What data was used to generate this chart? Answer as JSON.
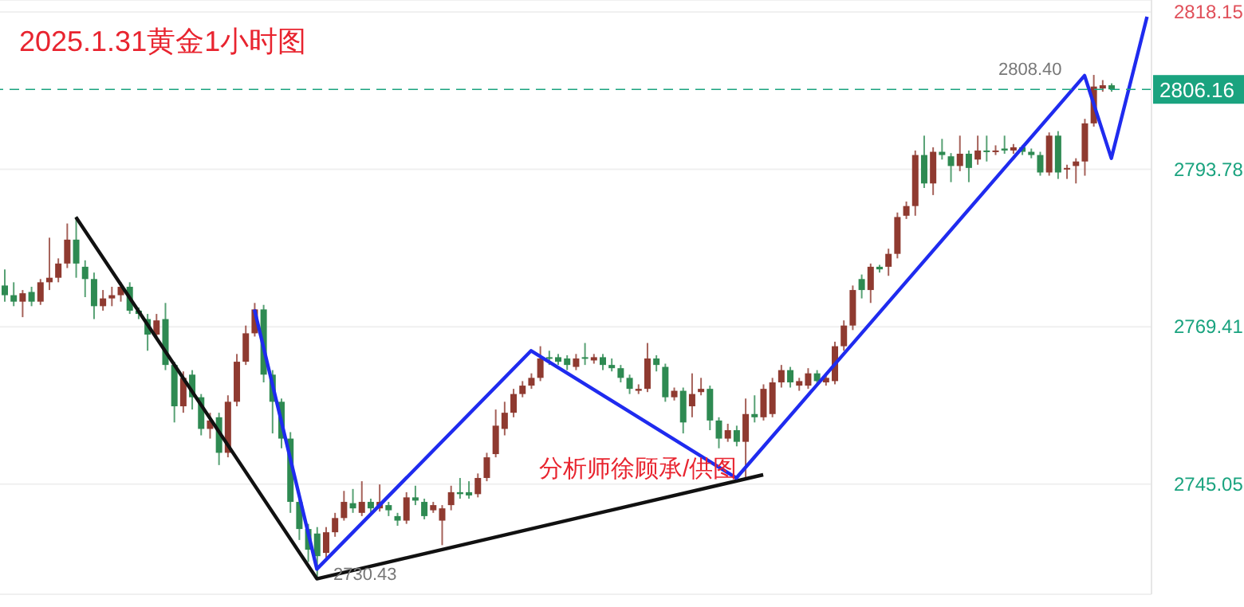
{
  "chart_data": {
    "type": "candlestick",
    "title": "2025.1.31黄金1小时图",
    "annotations": [
      "分析师徐顾承/供图",
      "2808.40",
      "2730.43"
    ],
    "categories": [
      null,
      null,
      null,
      null,
      null,
      null,
      null,
      null,
      null,
      null,
      null,
      null,
      null,
      null,
      null,
      null,
      null,
      null,
      null,
      null,
      null,
      null,
      null,
      null,
      null,
      null,
      null,
      null,
      null,
      null,
      null,
      null,
      null,
      null,
      null,
      null,
      null,
      null,
      null,
      null,
      null,
      null,
      null,
      null,
      null,
      null,
      null,
      null,
      null,
      null,
      null,
      null,
      null,
      null,
      null,
      null,
      null,
      null,
      null,
      null,
      null,
      null,
      null,
      null,
      null,
      null,
      null,
      null,
      null,
      null,
      null,
      null,
      null,
      null,
      null,
      null,
      null,
      null,
      null,
      null,
      null,
      null,
      null,
      null,
      null,
      null,
      null,
      null,
      null,
      null,
      null,
      null,
      null,
      null,
      null,
      null,
      null,
      null,
      null,
      null,
      null,
      null,
      null,
      null,
      null,
      null,
      null,
      null,
      null,
      null,
      null,
      null,
      null,
      null,
      null,
      null,
      null,
      null,
      null,
      null,
      null,
      null,
      null,
      null,
      null,
      null,
      null,
      null,
      null
    ],
    "ohlc": [
      [
        2775.8,
        2778.3,
        2773.3,
        2774.3
      ],
      [
        2774.3,
        2776.3,
        2772.6,
        2773.3
      ],
      [
        2773.3,
        2775.1,
        2770.9,
        2774.6
      ],
      [
        2774.8,
        2775.6,
        2772.6,
        2773.3
      ],
      [
        2773.3,
        2776.8,
        2772.8,
        2776.3
      ],
      [
        2776.3,
        2783.2,
        2775.1,
        2777.0
      ],
      [
        2777.0,
        2780.0,
        2776.3,
        2779.2
      ],
      [
        2779.2,
        2785.4,
        2778.5,
        2782.9
      ],
      [
        2782.9,
        2786.4,
        2777.0,
        2779.2
      ],
      [
        2778.7,
        2779.7,
        2774.0,
        2776.8
      ],
      [
        2776.8,
        2777.8,
        2770.6,
        2772.6
      ],
      [
        2772.6,
        2775.1,
        2771.9,
        2773.8
      ],
      [
        2773.8,
        2775.6,
        2772.6,
        2774.3
      ],
      [
        2774.3,
        2776.3,
        2773.3,
        2775.6
      ],
      [
        2775.6,
        2776.3,
        2771.4,
        2771.9
      ],
      [
        2771.9,
        2772.4,
        2770.6,
        2771.4
      ],
      [
        2770.6,
        2771.4,
        2765.7,
        2768.2
      ],
      [
        2768.2,
        2771.4,
        2767.4,
        2770.4
      ],
      [
        2770.6,
        2773.1,
        2762.7,
        2763.5
      ],
      [
        2763.5,
        2764.0,
        2754.6,
        2757.1
      ],
      [
        2757.1,
        2762.5,
        2756.1,
        2761.5
      ],
      [
        2762.0,
        2762.7,
        2756.6,
        2758.5
      ],
      [
        2758.5,
        2759.0,
        2752.6,
        2753.6
      ],
      [
        2753.6,
        2756.1,
        2752.1,
        2754.9
      ],
      [
        2755.4,
        2756.1,
        2748.0,
        2749.9
      ],
      [
        2749.9,
        2758.8,
        2749.2,
        2757.8
      ],
      [
        2757.8,
        2765.2,
        2757.1,
        2764.0
      ],
      [
        2764.0,
        2769.6,
        2763.5,
        2768.4
      ],
      [
        2768.4,
        2773.1,
        2767.9,
        2772.1
      ],
      [
        2772.1,
        2772.8,
        2760.8,
        2762.0
      ],
      [
        2762.0,
        2762.7,
        2752.9,
        2757.8
      ],
      [
        2757.8,
        2758.3,
        2750.6,
        2752.1
      ],
      [
        2752.1,
        2753.1,
        2740.6,
        2742.3
      ],
      [
        2742.3,
        2743.0,
        2736.4,
        2738.1
      ],
      [
        2738.1,
        2738.9,
        2733.0,
        2734.9
      ],
      [
        2737.4,
        2738.4,
        2730.43,
        2733.9
      ],
      [
        2734.4,
        2738.4,
        2733.6,
        2737.6
      ],
      [
        2737.6,
        2740.6,
        2736.9,
        2739.8
      ],
      [
        2739.8,
        2744.0,
        2739.4,
        2742.3
      ],
      [
        2742.1,
        2744.3,
        2740.6,
        2741.3
      ],
      [
        2740.6,
        2745.5,
        2740.1,
        2742.3
      ],
      [
        2742.3,
        2742.8,
        2740.6,
        2741.3
      ],
      [
        2741.3,
        2745.0,
        2740.8,
        2742.3
      ],
      [
        2741.8,
        2742.3,
        2740.1,
        2741.0
      ],
      [
        2740.1,
        2740.6,
        2738.6,
        2739.4
      ],
      [
        2739.4,
        2743.8,
        2738.9,
        2743.0
      ],
      [
        2743.0,
        2744.8,
        2741.8,
        2742.5
      ],
      [
        2742.3,
        2742.8,
        2739.6,
        2740.1
      ],
      [
        2741.0,
        2742.3,
        2740.6,
        2741.8
      ],
      [
        2739.4,
        2741.8,
        2735.6,
        2741.3
      ],
      [
        2741.8,
        2744.8,
        2741.0,
        2743.8
      ],
      [
        2743.8,
        2746.0,
        2742.8,
        2743.5
      ],
      [
        2743.8,
        2745.5,
        2742.8,
        2743.3
      ],
      [
        2743.5,
        2746.7,
        2743.0,
        2746.0
      ],
      [
        2746.0,
        2749.9,
        2745.5,
        2749.2
      ],
      [
        2749.7,
        2756.6,
        2749.2,
        2754.1
      ],
      [
        2753.6,
        2757.8,
        2752.6,
        2756.1
      ],
      [
        2756.1,
        2759.8,
        2755.4,
        2759.0
      ],
      [
        2759.0,
        2761.0,
        2758.5,
        2760.3
      ],
      [
        2760.3,
        2762.2,
        2759.8,
        2761.5
      ],
      [
        2761.5,
        2766.4,
        2761.0,
        2764.5
      ],
      [
        2764.7,
        2765.7,
        2763.5,
        2764.5
      ],
      [
        2764.7,
        2765.2,
        2763.5,
        2764.0
      ],
      [
        2764.5,
        2765.0,
        2762.7,
        2763.5
      ],
      [
        2763.2,
        2765.2,
        2762.7,
        2764.5
      ],
      [
        2764.7,
        2766.9,
        2763.5,
        2764.5
      ],
      [
        2764.2,
        2765.2,
        2763.7,
        2764.7
      ],
      [
        2764.7,
        2765.2,
        2762.7,
        2763.5
      ],
      [
        2763.5,
        2764.5,
        2762.5,
        2763.0
      ],
      [
        2763.0,
        2763.5,
        2760.8,
        2761.5
      ],
      [
        2761.5,
        2762.0,
        2759.0,
        2759.8
      ],
      [
        2759.5,
        2760.5,
        2759.0,
        2759.8
      ],
      [
        2759.8,
        2766.9,
        2759.3,
        2764.5
      ],
      [
        2764.5,
        2765.0,
        2762.5,
        2763.5
      ],
      [
        2763.2,
        2763.7,
        2757.8,
        2758.5
      ],
      [
        2758.5,
        2760.0,
        2758.0,
        2759.5
      ],
      [
        2759.5,
        2760.0,
        2752.9,
        2754.6
      ],
      [
        2757.1,
        2762.2,
        2755.4,
        2759.0
      ],
      [
        2759.3,
        2761.5,
        2758.8,
        2759.8
      ],
      [
        2759.8,
        2760.3,
        2753.4,
        2754.9
      ],
      [
        2754.9,
        2755.4,
        2750.6,
        2752.1
      ],
      [
        2752.1,
        2754.4,
        2751.6,
        2753.4
      ],
      [
        2753.4,
        2754.1,
        2750.9,
        2751.6
      ],
      [
        2751.6,
        2758.3,
        2746.0,
        2755.9
      ],
      [
        2755.9,
        2758.8,
        2754.6,
        2755.4
      ],
      [
        2755.4,
        2760.5,
        2754.9,
        2759.8
      ],
      [
        2755.9,
        2761.5,
        2755.4,
        2760.8
      ],
      [
        2760.8,
        2763.5,
        2760.0,
        2762.7
      ],
      [
        2762.7,
        2763.2,
        2760.0,
        2760.8
      ],
      [
        2760.3,
        2761.5,
        2759.5,
        2761.0
      ],
      [
        2760.3,
        2763.0,
        2759.8,
        2762.2
      ],
      [
        2762.2,
        2762.7,
        2760.3,
        2761.0
      ],
      [
        2760.8,
        2762.0,
        2760.3,
        2761.5
      ],
      [
        2761.0,
        2767.1,
        2760.5,
        2766.4
      ],
      [
        2766.4,
        2770.4,
        2765.7,
        2769.6
      ],
      [
        2769.6,
        2775.8,
        2768.9,
        2775.1
      ],
      [
        2776.8,
        2777.5,
        2773.8,
        2775.1
      ],
      [
        2775.1,
        2779.2,
        2773.1,
        2778.7
      ],
      [
        2778.7,
        2779.0,
        2777.8,
        2778.3
      ],
      [
        2778.7,
        2781.5,
        2777.3,
        2780.7
      ],
      [
        2780.7,
        2787.1,
        2780.0,
        2786.4
      ],
      [
        2786.6,
        2788.8,
        2786.1,
        2788.1
      ],
      [
        2788.1,
        2796.7,
        2786.6,
        2796.0
      ],
      [
        2796.0,
        2799.0,
        2790.9,
        2791.6
      ],
      [
        2791.6,
        2797.2,
        2789.8,
        2796.5
      ],
      [
        2796.5,
        2798.5,
        2795.3,
        2796.0
      ],
      [
        2795.8,
        2796.3,
        2791.8,
        2794.3
      ],
      [
        2794.3,
        2799.0,
        2793.5,
        2796.2
      ],
      [
        2796.2,
        2796.7,
        2791.8,
        2794.0
      ],
      [
        2795.3,
        2799.0,
        2794.5,
        2796.7
      ],
      [
        2796.7,
        2799.0,
        2795.0,
        2796.5
      ],
      [
        2796.5,
        2797.5,
        2796.0,
        2796.7
      ],
      [
        2797.0,
        2799.0,
        2796.2,
        2796.7
      ],
      [
        2796.7,
        2797.7,
        2796.2,
        2797.2
      ],
      [
        2797.2,
        2797.5,
        2796.0,
        2796.5
      ],
      [
        2796.5,
        2797.0,
        2795.5,
        2796.0
      ],
      [
        2796.0,
        2796.5,
        2792.8,
        2793.3
      ],
      [
        2793.3,
        2799.5,
        2792.8,
        2799.0
      ],
      [
        2799.0,
        2799.7,
        2792.3,
        2793.3
      ],
      [
        2793.8,
        2794.5,
        2792.3,
        2794.0
      ],
      [
        2794.3,
        2795.5,
        2791.6,
        2795.0
      ],
      [
        2795.0,
        2801.6,
        2792.8,
        2800.9
      ],
      [
        2800.9,
        2808.4,
        2800.4,
        2806.6
      ],
      [
        2806.3,
        2807.6,
        2805.8,
        2806.8
      ],
      [
        2806.8,
        2807.1,
        2805.8,
        2806.16
      ],
      null,
      null,
      null,
      null
    ],
    "colors": [
      "#2e8a52",
      "#2e8a52",
      "#8f3a30",
      "#2e8a52",
      "#8f3a30",
      "#8f3a30",
      "#8f3a30",
      "#8f3a30",
      "#2e8a52",
      "#2e8a52",
      "#2e8a52",
      "#8f3a30",
      "#8f3a30",
      "#8f3a30",
      "#2e8a52",
      "#2e8a52",
      "#2e8a52",
      "#8f3a30",
      "#2e8a52",
      "#2e8a52",
      "#8f3a30",
      "#2e8a52",
      "#2e8a52",
      "#8f3a30",
      "#2e8a52",
      "#8f3a30",
      "#8f3a30",
      "#8f3a30",
      "#8f3a30",
      "#2e8a52",
      "#2e8a52",
      "#2e8a52",
      "#2e8a52",
      "#2e8a52",
      "#2e8a52",
      "#2e8a52",
      "#8f3a30",
      "#8f3a30",
      "#8f3a30",
      "#2e8a52",
      "#8f3a30",
      "#2e8a52",
      "#8f3a30",
      "#2e8a52",
      "#2e8a52",
      "#8f3a30",
      "#2e8a52",
      "#2e8a52",
      "#8f3a30",
      "#8f3a30",
      "#8f3a30",
      "#2e8a52",
      "#2e8a52",
      "#8f3a30",
      "#8f3a30",
      "#8f3a30",
      "#8f3a30",
      "#8f3a30",
      "#8f3a30",
      "#8f3a30",
      "#8f3a30",
      "#2e8a52",
      "#2e8a52",
      "#2e8a52",
      "#8f3a30",
      "#2e8a52",
      "#8f3a30",
      "#2e8a52",
      "#2e8a52",
      "#2e8a52",
      "#2e8a52",
      "#8f3a30",
      "#8f3a30",
      "#2e8a52",
      "#2e8a52",
      "#8f3a30",
      "#2e8a52",
      "#8f3a30",
      "#8f3a30",
      "#2e8a52",
      "#2e8a52",
      "#8f3a30",
      "#2e8a52",
      "#8f3a30",
      "#2e8a52",
      "#8f3a30",
      "#8f3a30",
      "#8f3a30",
      "#2e8a52",
      "#8f3a30",
      "#8f3a30",
      "#2e8a52",
      "#8f3a30",
      "#8f3a30",
      "#8f3a30",
      "#8f3a30",
      "#2e8a52",
      "#8f3a30",
      "#2e8a52",
      "#8f3a30",
      "#8f3a30",
      "#8f3a30",
      "#8f3a30",
      "#2e8a52",
      "#8f3a30",
      "#2e8a52",
      "#2e8a52",
      "#8f3a30",
      "#2e8a52",
      "#8f3a30",
      "#2e8a52",
      "#8f3a30",
      "#2e8a52",
      "#8f3a30",
      "#2e8a52",
      "#2e8a52",
      "#2e8a52",
      "#8f3a30",
      "#2e8a52",
      "#8f3a30",
      "#8f3a30",
      "#8f3a30",
      "#8f3a30",
      "#8f3a30",
      "#2e8a52",
      null,
      null,
      null,
      null
    ],
    "series": [
      {
        "type": "line",
        "color": "#111111",
        "values": [
          null,
          null,
          null,
          null,
          null,
          null,
          null,
          null,
          2786.4,
          null,
          null,
          null,
          null,
          null,
          null,
          null,
          null,
          null,
          null,
          null,
          null,
          null,
          null,
          null,
          null,
          null,
          null,
          null,
          null,
          null,
          null,
          null,
          null,
          null,
          null,
          2730.4,
          null,
          null,
          null,
          null,
          null,
          null,
          null,
          null,
          null,
          null,
          null,
          null,
          null,
          null,
          null,
          null,
          null,
          null,
          null,
          null,
          null,
          null,
          null,
          null,
          null,
          null,
          null,
          null,
          null,
          null,
          null,
          null,
          null,
          null,
          null,
          null,
          null,
          null,
          null,
          null,
          null,
          null,
          null,
          null,
          null,
          null,
          null,
          null,
          null,
          2746.5,
          null,
          null,
          null,
          null,
          null,
          null,
          null,
          null,
          null,
          null,
          null,
          null,
          null,
          null,
          null,
          null,
          null,
          null,
          null,
          null,
          null,
          null,
          null,
          null,
          null,
          null,
          null,
          null,
          null,
          null,
          null,
          null,
          null,
          null,
          null,
          null,
          null,
          null,
          null,
          null,
          null,
          null,
          null
        ]
      },
      {
        "type": "line",
        "color": "#1f2bef",
        "values": [
          null,
          null,
          null,
          null,
          null,
          null,
          null,
          null,
          null,
          null,
          null,
          null,
          null,
          null,
          null,
          null,
          null,
          null,
          null,
          null,
          null,
          null,
          null,
          null,
          null,
          null,
          null,
          null,
          2772.1,
          null,
          null,
          null,
          null,
          null,
          null,
          2731.9,
          null,
          null,
          null,
          null,
          null,
          null,
          null,
          null,
          null,
          null,
          null,
          null,
          null,
          null,
          null,
          null,
          null,
          null,
          null,
          null,
          null,
          null,
          null,
          2765.7,
          null,
          null,
          null,
          null,
          null,
          null,
          null,
          null,
          null,
          null,
          null,
          null,
          null,
          null,
          null,
          null,
          null,
          null,
          null,
          null,
          null,
          null,
          2746.0,
          null,
          null,
          null,
          null,
          null,
          null,
          null,
          null,
          null,
          null,
          null,
          null,
          null,
          null,
          null,
          null,
          null,
          null,
          null,
          null,
          null,
          null,
          null,
          null,
          null,
          null,
          null,
          null,
          null,
          null,
          null,
          null,
          null,
          null,
          null,
          null,
          null,
          null,
          2808.3,
          null,
          null,
          2795.5,
          null,
          null,
          null,
          2817.4
        ]
      }
    ],
    "marker": "none",
    "line_style": "solid",
    "ylim": [
      2728,
      2820
    ],
    "yticks": [
      2745.05,
      2769.41,
      2793.78,
      2818.15
    ],
    "ref_lines": [
      {
        "axis": "y",
        "value": 2806.16,
        "label": "2806.16",
        "color": "#1aa37f",
        "line_style": "dashed"
      }
    ],
    "grid": "y",
    "tick_labels": "y"
  }
}
